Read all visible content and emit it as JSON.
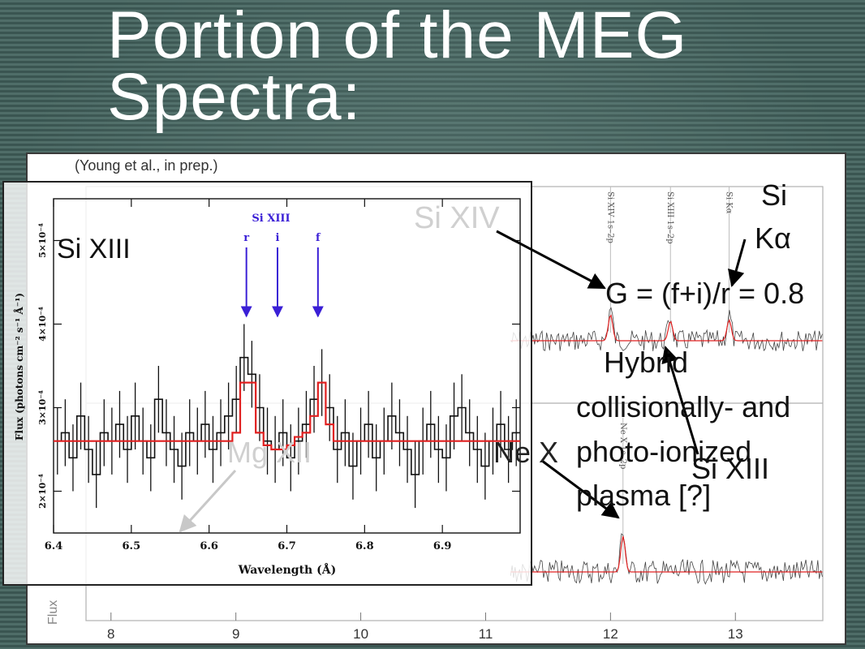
{
  "slide": {
    "title_line1": "Portion of the MEG",
    "title_line2": "Spectra:",
    "citation": "(Young et al., in prep.)"
  },
  "annotations": {
    "si_xiii_inset": "Si XIII",
    "si_xiv": "Si XIV",
    "si_k_line1": "Si",
    "si_k_line2": "Kα",
    "g_ratio": "G = (f+i)/r = 0.8",
    "hybrid_line1": "Hybrid",
    "hybrid_line2": "collisionally- and",
    "hybrid_line3": "photo-ionized",
    "hybrid_line4": "plasma [?]",
    "si_xiii_main": "Si XIII",
    "mg_xii": "Mg XII",
    "ne_x": "Ne X"
  },
  "colors": {
    "model": "#e02020",
    "data": "#111111",
    "marker": "#3a1fd6",
    "arrow": "#000000",
    "faded_arrow": "#c8c8c8"
  },
  "chart_data": [
    {
      "type": "line",
      "role": "inset",
      "xlabel": "Wavelength (Å)",
      "ylabel": "Flux (photons cm⁻² s⁻¹ Å⁻¹)",
      "xlim": [
        6.4,
        7.0
      ],
      "ylim": [
        0.00015,
        0.00055
      ],
      "xticks": [
        6.4,
        6.5,
        6.6,
        6.7,
        6.8,
        6.9
      ],
      "xtick_labels": [
        "6.4",
        "6.5",
        "6.6",
        "6.7",
        "6.8",
        "6.9"
      ],
      "yticks": [
        0.0002,
        0.0003,
        0.0004,
        0.0005
      ],
      "ytick_labels": [
        "2×10⁻⁴",
        "3×10⁻⁴",
        "4×10⁻⁴",
        "5×10⁻⁴"
      ],
      "ion_label": "Si XIII",
      "markers": [
        {
          "label": "r",
          "x": 6.648
        },
        {
          "label": "i",
          "x": 6.688
        },
        {
          "label": "f",
          "x": 6.74
        }
      ],
      "model": {
        "x": [
          6.4,
          6.62,
          6.63,
          6.64,
          6.65,
          6.66,
          6.67,
          6.68,
          6.69,
          6.7,
          6.71,
          6.72,
          6.73,
          6.74,
          6.75,
          6.76,
          6.77,
          7.0
        ],
        "y": [
          0.00026,
          0.00026,
          0.00027,
          0.00033,
          0.00033,
          0.00027,
          0.000255,
          0.00025,
          0.00025,
          0.000255,
          0.000265,
          0.00027,
          0.00029,
          0.00033,
          0.00028,
          0.00026,
          0.00026,
          0.00026
        ]
      },
      "data": {
        "x": [
          6.405,
          6.415,
          6.425,
          6.435,
          6.445,
          6.455,
          6.465,
          6.475,
          6.485,
          6.495,
          6.505,
          6.515,
          6.525,
          6.535,
          6.545,
          6.555,
          6.565,
          6.575,
          6.585,
          6.595,
          6.605,
          6.615,
          6.625,
          6.635,
          6.645,
          6.655,
          6.665,
          6.675,
          6.685,
          6.695,
          6.705,
          6.715,
          6.725,
          6.735,
          6.745,
          6.755,
          6.765,
          6.775,
          6.785,
          6.795,
          6.805,
          6.815,
          6.825,
          6.835,
          6.845,
          6.855,
          6.865,
          6.875,
          6.885,
          6.895,
          6.905,
          6.915,
          6.925,
          6.935,
          6.945,
          6.955,
          6.965,
          6.975,
          6.985,
          6.995
        ],
        "y": [
          0.00026,
          0.00027,
          0.00024,
          0.00029,
          0.00025,
          0.00022,
          0.00027,
          0.00026,
          0.00028,
          0.00025,
          0.00029,
          0.00026,
          0.00024,
          0.00031,
          0.00027,
          0.00025,
          0.00023,
          0.00027,
          0.00026,
          0.00028,
          0.00025,
          0.00027,
          0.00029,
          0.00031,
          0.00036,
          0.00034,
          0.0003,
          0.00026,
          0.00025,
          0.00027,
          0.00024,
          0.00026,
          0.00028,
          0.00031,
          0.00033,
          0.0003,
          0.00025,
          0.00027,
          0.00023,
          0.00026,
          0.00028,
          0.00024,
          0.00026,
          0.00029,
          0.00027,
          0.00025,
          0.00022,
          0.00026,
          0.00028,
          0.00025,
          0.00024,
          0.00029,
          0.0003,
          0.00027,
          0.00025,
          0.00023,
          0.00026,
          0.00028,
          0.00025,
          0.00027
        ],
        "err": 4e-05
      }
    },
    {
      "type": "line",
      "role": "background",
      "xlabel": "",
      "ylabel": "Flux",
      "xlim": [
        7.8,
        13.7
      ],
      "xticks": [
        8,
        9,
        10,
        11,
        12,
        13
      ],
      "xtick_labels": [
        "8",
        "9",
        "10",
        "11",
        "12",
        "13"
      ],
      "line_labels": [
        {
          "label": "Si XIV 1s–2p",
          "x": 12.0
        },
        {
          "label": "Si XIII 1s–2p",
          "x": 12.48
        },
        {
          "label": "Si Kα",
          "x": 12.95
        },
        {
          "label": "Ne X 1s–2p",
          "x": 12.1
        }
      ]
    }
  ]
}
